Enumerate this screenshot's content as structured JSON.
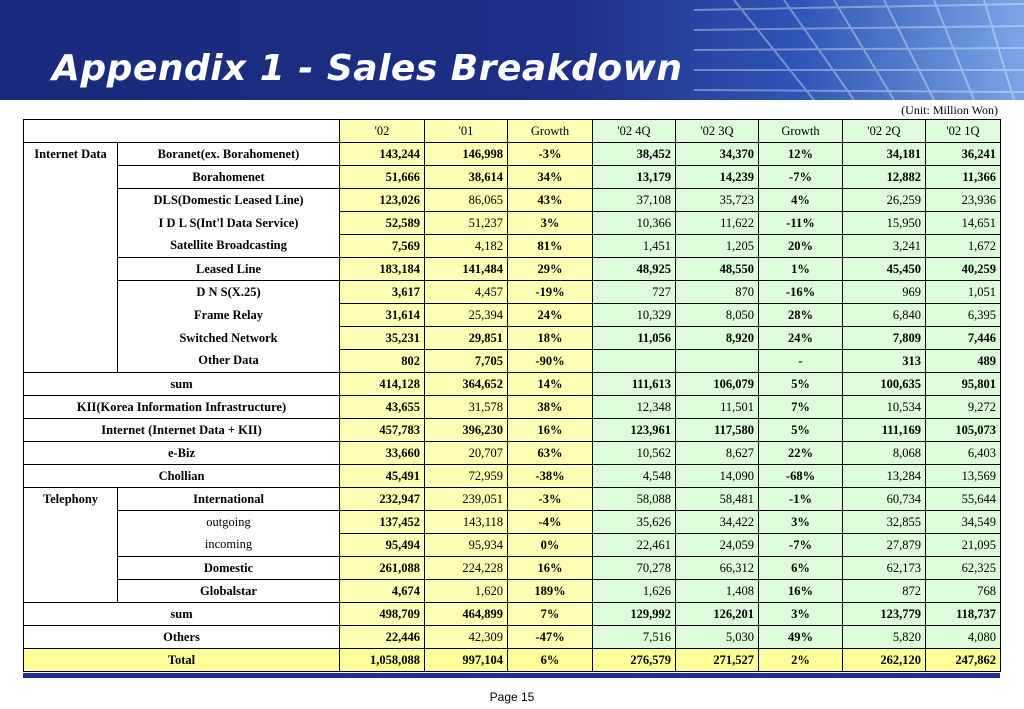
{
  "title": "Appendix 1 - Sales Breakdown",
  "unit": "(Unit: Million Won)",
  "page": "Page 15",
  "headers": [
    "'02",
    "'01",
    "Growth",
    "'02 4Q",
    "'02 3Q",
    "Growth",
    "'02 2Q",
    "'02 1Q"
  ],
  "rows": [
    {
      "group": "Internet Data",
      "label": "Boranet(ex. Borahomenet)",
      "vals": [
        "143,244",
        "146,998",
        "-3%",
        "38,452",
        "34,370",
        "12%",
        "34,181",
        "36,241"
      ]
    },
    {
      "group": "",
      "label": "Borahomenet",
      "vals": [
        "51,666",
        "38,614",
        "34%",
        "13,179",
        "14,239",
        "-7%",
        "12,882",
        "11,366"
      ]
    },
    {
      "group": "",
      "label": "DLS(Domestic Leased Line)",
      "vals": [
        "123,026",
        "86,065",
        "43%",
        "37,108",
        "35,723",
        "4%",
        "26,259",
        "23,936"
      ]
    },
    {
      "group": "",
      "label": "I D L S(Int'l Data Service)",
      "vals": [
        "52,589",
        "51,237",
        "3%",
        "10,366",
        "11,622",
        "-11%",
        "15,950",
        "14,651"
      ]
    },
    {
      "group": "",
      "label": "Satellite Broadcasting",
      "vals": [
        "7,569",
        "4,182",
        "81%",
        "1,451",
        "1,205",
        "20%",
        "3,241",
        "1,672"
      ]
    },
    {
      "group": "",
      "label": "Leased Line",
      "vals": [
        "183,184",
        "141,484",
        "29%",
        "48,925",
        "48,550",
        "1%",
        "45,450",
        "40,259"
      ]
    },
    {
      "group": "",
      "label": "D N S(X.25)",
      "vals": [
        "3,617",
        "4,457",
        "-19%",
        "727",
        "870",
        "-16%",
        "969",
        "1,051"
      ]
    },
    {
      "group": "",
      "label": "Frame Relay",
      "vals": [
        "31,614",
        "25,394",
        "24%",
        "10,329",
        "8,050",
        "28%",
        "6,840",
        "6,395"
      ]
    },
    {
      "group": "",
      "label": "Switched Network",
      "vals": [
        "35,231",
        "29,851",
        "18%",
        "11,056",
        "8,920",
        "24%",
        "7,809",
        "7,446"
      ]
    },
    {
      "group": "",
      "label": "Other Data",
      "vals": [
        "802",
        "7,705",
        "-90%",
        "",
        "",
        "-",
        "313",
        "489"
      ]
    },
    {
      "group": "",
      "label": "sum",
      "vals": [
        "414,128",
        "364,652",
        "14%",
        "111,613",
        "106,079",
        "5%",
        "100,635",
        "95,801"
      ]
    },
    {
      "group": "",
      "label": "KII(Korea Information Infrastructure)",
      "vals": [
        "43,655",
        "31,578",
        "38%",
        "12,348",
        "11,501",
        "7%",
        "10,534",
        "9,272"
      ]
    },
    {
      "group": "",
      "label": "Internet (Internet Data + KII)",
      "vals": [
        "457,783",
        "396,230",
        "16%",
        "123,961",
        "117,580",
        "5%",
        "111,169",
        "105,073"
      ]
    },
    {
      "group": "",
      "label": "e-Biz",
      "vals": [
        "33,660",
        "20,707",
        "63%",
        "10,562",
        "8,627",
        "22%",
        "8,068",
        "6,403"
      ]
    },
    {
      "group": "",
      "label": "Chollian",
      "vals": [
        "45,491",
        "72,959",
        "-38%",
        "4,548",
        "14,090",
        "-68%",
        "13,284",
        "13,569"
      ]
    },
    {
      "group": "Telephony",
      "label": "International",
      "vals": [
        "232,947",
        "239,051",
        "-3%",
        "58,088",
        "58,481",
        "-1%",
        "60,734",
        "55,644"
      ]
    },
    {
      "group": "",
      "label": "outgoing",
      "vals": [
        "137,452",
        "143,118",
        "-4%",
        "35,626",
        "34,422",
        "3%",
        "32,855",
        "34,549"
      ]
    },
    {
      "group": "",
      "label": "incoming",
      "vals": [
        "95,494",
        "95,934",
        "0%",
        "22,461",
        "24,059",
        "-7%",
        "27,879",
        "21,095"
      ]
    },
    {
      "group": "",
      "label": "Domestic",
      "vals": [
        "261,088",
        "224,228",
        "16%",
        "70,278",
        "66,312",
        "6%",
        "62,173",
        "62,325"
      ]
    },
    {
      "group": "",
      "label": "Globalstar",
      "vals": [
        "4,674",
        "1,620",
        "189%",
        "1,626",
        "1,408",
        "16%",
        "872",
        "768"
      ]
    },
    {
      "group": "",
      "label": "sum",
      "vals": [
        "498,709",
        "464,899",
        "7%",
        "129,992",
        "126,201",
        "3%",
        "123,779",
        "118,737"
      ]
    },
    {
      "group": "",
      "label": "Others",
      "vals": [
        "22,446",
        "42,309",
        "-47%",
        "7,516",
        "5,030",
        "49%",
        "5,820",
        "4,080"
      ]
    },
    {
      "group": "",
      "label": "Total",
      "vals": [
        "1,058,088",
        "997,104",
        "6%",
        "276,579",
        "271,527",
        "2%",
        "262,120",
        "247,862"
      ]
    }
  ]
}
